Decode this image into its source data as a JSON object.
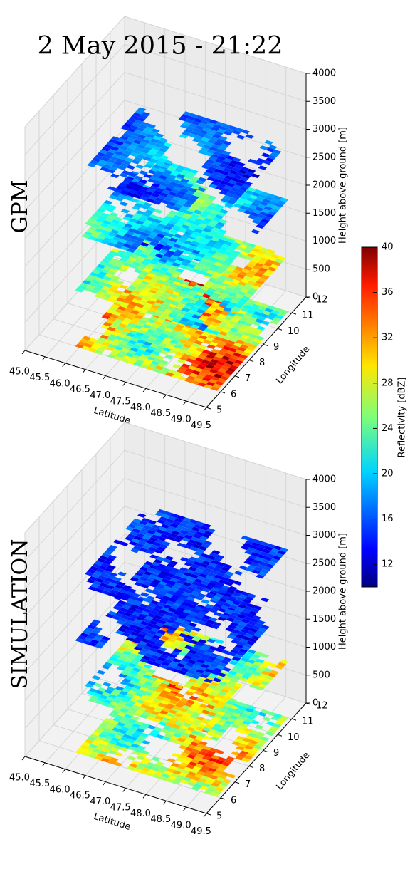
{
  "title": "2 May 2015 - 21:22",
  "chart_data": [
    {
      "type": "slices3d",
      "title": "GPM",
      "xlabel": "Latitude",
      "ylabel": "Longitude",
      "zlabel": "Height above ground [m]",
      "xlim": [
        45,
        49.5
      ],
      "ylim": [
        5,
        12
      ],
      "zlim": [
        0,
        4000
      ],
      "xticks": [
        {
          "value": 45,
          "label": "45.0"
        },
        45.5,
        {
          "value": 46,
          "label": "46.0"
        },
        46.5,
        {
          "value": 47,
          "label": "47.0"
        },
        47.5,
        {
          "value": 48,
          "label": "48.0"
        },
        48.5,
        {
          "value": 49,
          "label": "49.0"
        },
        49.5
      ],
      "yticks": [
        5,
        6,
        7,
        8,
        9,
        10,
        11,
        12
      ],
      "zticks": [
        0,
        500,
        1000,
        1500,
        2000,
        2500,
        3000,
        3500,
        4000
      ],
      "levels": [
        0,
        1000,
        2000,
        3000
      ],
      "grid": true
    },
    {
      "type": "slices3d",
      "title": "SIMULATION",
      "xlabel": "Latitude",
      "ylabel": "Longitude",
      "zlabel": "Height above ground [m]",
      "xlim": [
        45,
        49.5
      ],
      "ylim": [
        5,
        12
      ],
      "zlim": [
        0,
        4000
      ],
      "xticks": [
        {
          "value": 45,
          "label": "45.0"
        },
        45.5,
        {
          "value": 46,
          "label": "46.0"
        },
        46.5,
        {
          "value": 47,
          "label": "47.0"
        },
        47.5,
        {
          "value": 48,
          "label": "48.0"
        },
        48.5,
        {
          "value": 49,
          "label": "49.0"
        },
        49.5
      ],
      "yticks": [
        5,
        6,
        7,
        8,
        9,
        10,
        11,
        12
      ],
      "zticks": [
        0,
        500,
        1000,
        1500,
        2000,
        2500,
        3000,
        3500,
        4000
      ],
      "levels": [
        0,
        1000,
        2000,
        3000
      ],
      "grid": true
    }
  ],
  "colorbar": {
    "label": "Reflectivity [dBZ]",
    "lim": [
      10,
      40
    ],
    "ticks": [
      12,
      16,
      20,
      24,
      28,
      32,
      36,
      40
    ],
    "colormap": "jet"
  }
}
